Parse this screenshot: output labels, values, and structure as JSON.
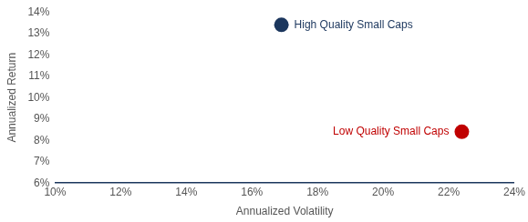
{
  "chart_data": {
    "type": "scatter",
    "x_label": "Annualized Volatility",
    "y_label": "Annualized Return",
    "series": [
      {
        "name": "High Quality Small Caps",
        "color": "#1b365d",
        "marker": "circle",
        "x": [
          16.9
        ],
        "values": [
          13.4
        ]
      },
      {
        "name": "Low Quality Small Caps",
        "color": "#c00000",
        "marker": "circle",
        "x": [
          22.4
        ],
        "values": [
          8.4
        ]
      }
    ],
    "xlim": [
      10,
      24
    ],
    "xticks": [
      {
        "value": 10,
        "label": "10%"
      },
      {
        "value": 12,
        "label": "12%"
      },
      {
        "value": 14,
        "label": "14%"
      },
      {
        "value": 16,
        "label": "16%"
      },
      {
        "value": 18,
        "label": "18%"
      },
      {
        "value": 20,
        "label": "20%"
      },
      {
        "value": 22,
        "label": "22%"
      },
      {
        "value": 24,
        "label": "24%"
      }
    ],
    "ylim": [
      6,
      14
    ],
    "yticks": [
      {
        "value": 6,
        "label": "6%"
      },
      {
        "value": 7,
        "label": "7%"
      },
      {
        "value": 8,
        "label": "8%"
      },
      {
        "value": 9,
        "label": "9%"
      },
      {
        "value": 10,
        "label": "10%"
      },
      {
        "value": 11,
        "label": "11%"
      },
      {
        "value": 12,
        "label": "12%"
      },
      {
        "value": 13,
        "label": "13%"
      },
      {
        "value": 14,
        "label": "14%"
      }
    ],
    "grid": false,
    "legend": false
  }
}
